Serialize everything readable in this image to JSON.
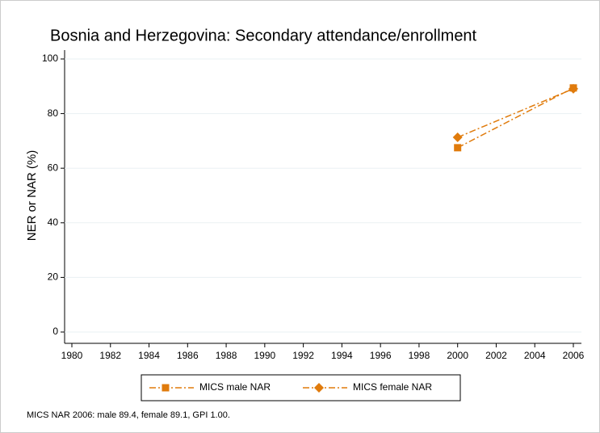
{
  "chart_data": {
    "type": "line",
    "title": "Bosnia and Herzegovina: Secondary attendance/enrollment",
    "y_label": "NER or NAR (%)",
    "note": "MICS NAR 2006: male 89.4, female 89.1, GPI 1.00.",
    "x": [
      2000,
      2006
    ],
    "series": [
      {
        "name": "MICS male NAR",
        "color": "#e07b0c",
        "marker": "square",
        "values": [
          67.5,
          89.4
        ]
      },
      {
        "name": "MICS female NAR",
        "color": "#e07b0c",
        "marker": "diamond",
        "values": [
          71.3,
          89.1
        ]
      }
    ],
    "xlim": [
      1980,
      2006
    ],
    "xticks": [
      1980,
      1982,
      1984,
      1986,
      1988,
      1990,
      1992,
      1994,
      1996,
      1998,
      2000,
      2002,
      2004,
      2006
    ],
    "ylim": [
      0,
      100
    ],
    "yticks": [
      0,
      20,
      40,
      60,
      80,
      100
    ],
    "grid": true
  }
}
